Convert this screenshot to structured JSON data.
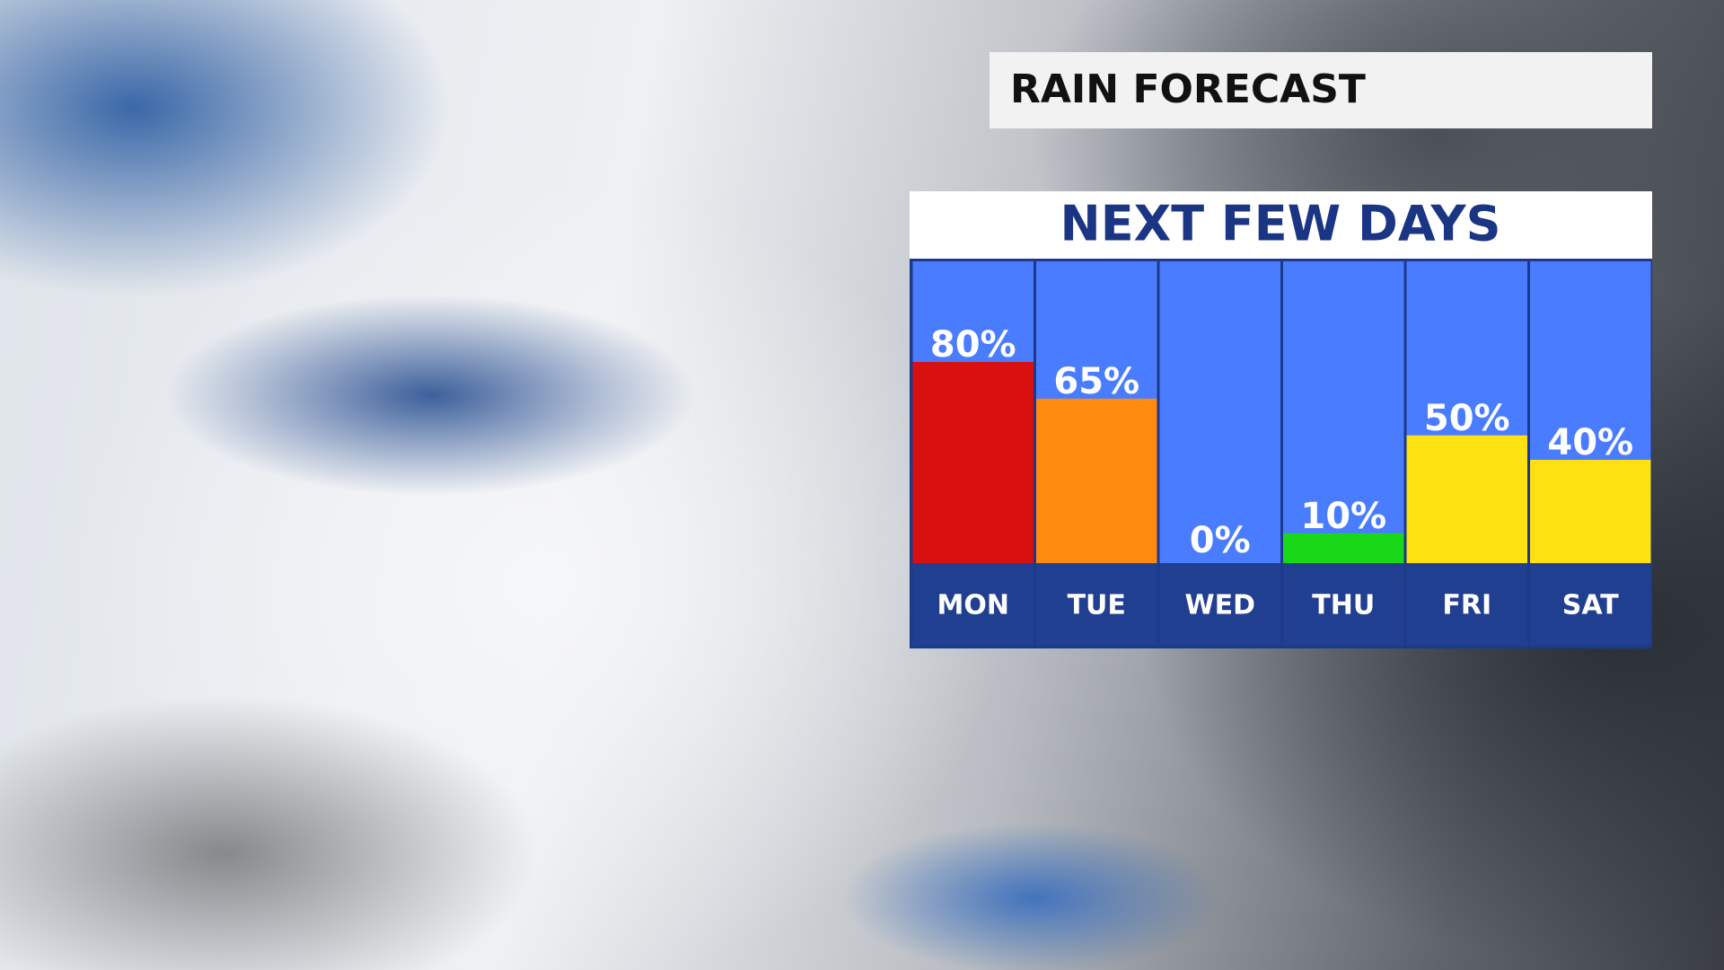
{
  "header": {
    "title": "RAIN FORECAST"
  },
  "chart_data": {
    "type": "bar",
    "title": "NEXT FEW DAYS",
    "categories": [
      "MON",
      "TUE",
      "WED",
      "THU",
      "FRI",
      "SAT"
    ],
    "values": [
      80,
      65,
      0,
      10,
      50,
      40
    ],
    "value_labels": [
      "80%",
      "65%",
      "0%",
      "10%",
      "50%",
      "40%"
    ],
    "colors": [
      "#d81010",
      "#ff8a10",
      "#ffffff",
      "#18d818",
      "#ffe010",
      "#ffe010"
    ],
    "ylim": [
      0,
      100
    ]
  }
}
